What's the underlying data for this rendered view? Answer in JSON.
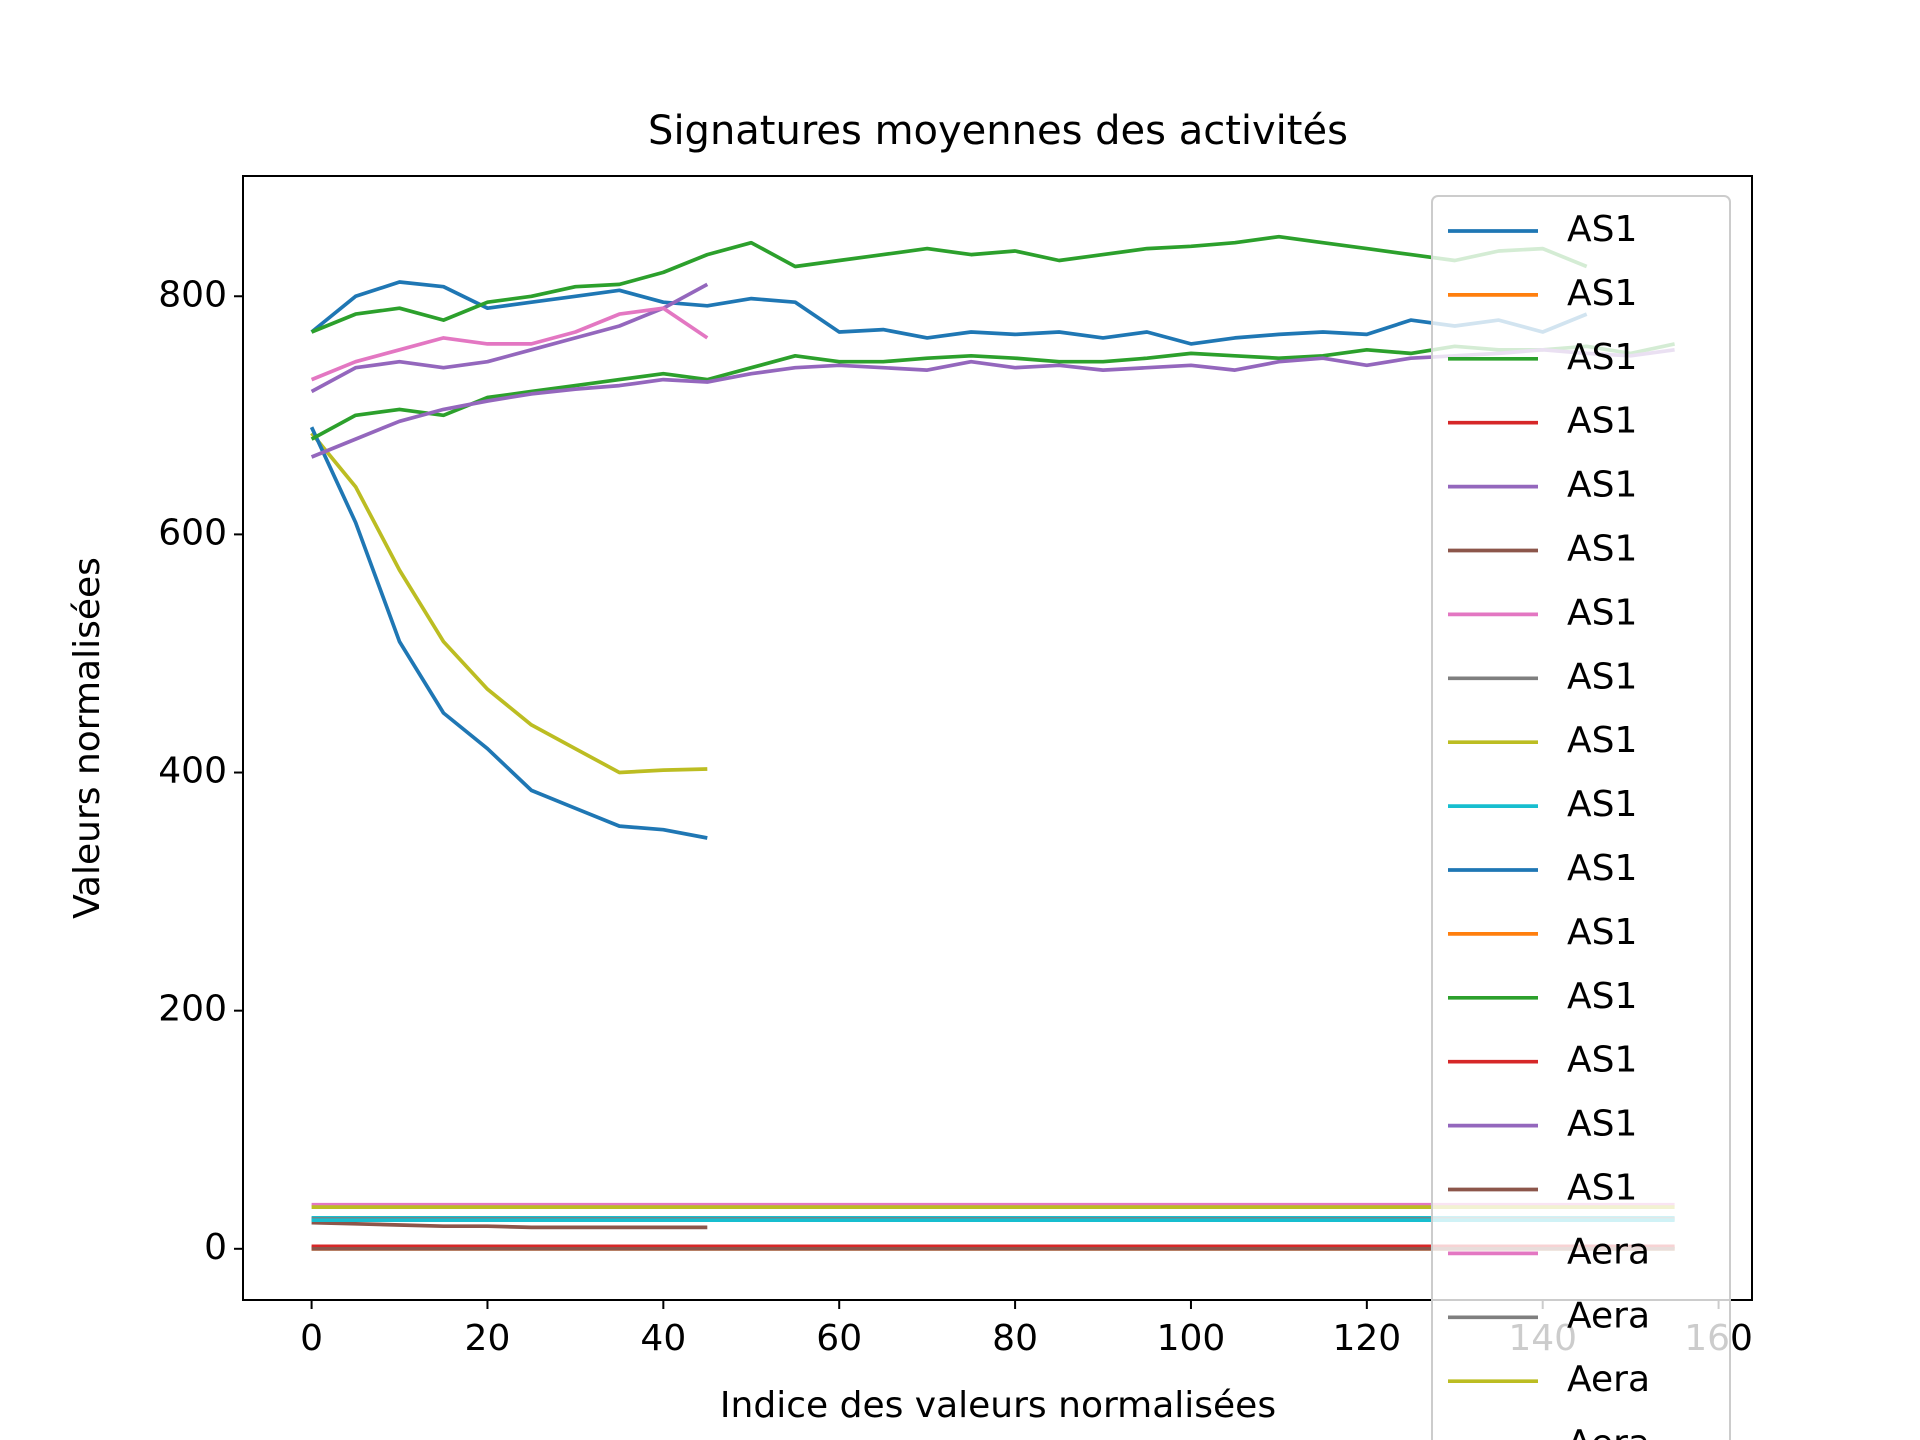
{
  "chart_data": {
    "type": "line",
    "title": "Signatures moyennes des activités",
    "xlabel": "Indice des valeurs normalisées",
    "ylabel": "Valeurs normalisées",
    "x": [
      0,
      5,
      10,
      15,
      20,
      25,
      30,
      35,
      40,
      45,
      50,
      55,
      60,
      65,
      70,
      75,
      80,
      85,
      90,
      95,
      100,
      105,
      110,
      115,
      120,
      125,
      130,
      135,
      140,
      145,
      150,
      155
    ],
    "xlim": [
      -7.8,
      163.8
    ],
    "xticks": [
      0,
      20,
      40,
      60,
      80,
      100,
      120,
      140,
      160
    ],
    "ylim": [
      -43,
      901
    ],
    "yticks": [
      0,
      200,
      400,
      600,
      800
    ],
    "legend_loc": "upper right",
    "series": [
      {
        "name": "AS1",
        "color": "#1f77b4",
        "values": [
          770,
          800,
          812,
          808,
          790,
          795,
          800,
          805,
          795,
          792,
          798,
          795,
          770,
          772,
          765,
          770,
          768,
          770,
          765,
          770,
          760,
          765,
          768,
          770,
          768,
          780,
          775,
          780,
          770,
          785,
          null,
          null
        ]
      },
      {
        "name": "AS1",
        "color": "#ff7f0e",
        "values": [
          0,
          0,
          0,
          0,
          0,
          0,
          0,
          0,
          0,
          0,
          0,
          0,
          0,
          0,
          0,
          0,
          0,
          0,
          0,
          0,
          0,
          0,
          0,
          0,
          0,
          0,
          0,
          0,
          0,
          0,
          0,
          0
        ]
      },
      {
        "name": "AS1",
        "color": "#2ca02c",
        "values": [
          770,
          785,
          790,
          780,
          795,
          800,
          808,
          810,
          820,
          835,
          845,
          825,
          830,
          835,
          840,
          835,
          838,
          830,
          835,
          840,
          842,
          845,
          850,
          845,
          840,
          835,
          830,
          838,
          840,
          825,
          null,
          null
        ]
      },
      {
        "name": "AS1",
        "color": "#d62728",
        "values": [
          1,
          1,
          1,
          1,
          1,
          1,
          1,
          1,
          1,
          1,
          1,
          1,
          1,
          1,
          1,
          1,
          1,
          1,
          1,
          1,
          1,
          1,
          1,
          1,
          1,
          1,
          1,
          1,
          1,
          1,
          1,
          1
        ]
      },
      {
        "name": "AS1",
        "color": "#9467bd",
        "values": [
          720,
          740,
          745,
          740,
          745,
          755,
          765,
          775,
          790,
          810,
          null,
          null,
          null,
          null,
          null,
          null,
          null,
          null,
          null,
          null,
          null,
          null,
          null,
          null,
          null,
          null,
          null,
          null,
          null,
          null,
          null,
          null
        ]
      },
      {
        "name": "AS1",
        "color": "#8c564b",
        "values": [
          22,
          21,
          20,
          19,
          19,
          18,
          18,
          18,
          18,
          18,
          null,
          null,
          null,
          null,
          null,
          null,
          null,
          null,
          null,
          null,
          null,
          null,
          null,
          null,
          null,
          null,
          null,
          null,
          null,
          null,
          null,
          null
        ]
      },
      {
        "name": "AS1",
        "color": "#e377c2",
        "values": [
          730,
          745,
          755,
          765,
          760,
          760,
          770,
          785,
          790,
          765,
          null,
          null,
          null,
          null,
          null,
          null,
          null,
          null,
          null,
          null,
          null,
          null,
          null,
          null,
          null,
          null,
          null,
          null,
          null,
          null,
          null,
          null
        ]
      },
      {
        "name": "AS1",
        "color": "#7f7f7f",
        "values": [
          25,
          25,
          25,
          25,
          25,
          25,
          25,
          25,
          25,
          25,
          25,
          25,
          25,
          25,
          25,
          25,
          25,
          25,
          25,
          25,
          25,
          25,
          25,
          25,
          25,
          25,
          25,
          25,
          25,
          25,
          25,
          25
        ]
      },
      {
        "name": "AS1",
        "color": "#bcbd22",
        "values": [
          685,
          640,
          570,
          510,
          470,
          440,
          420,
          400,
          402,
          403,
          null,
          null,
          null,
          null,
          null,
          null,
          null,
          null,
          null,
          null,
          null,
          null,
          null,
          null,
          null,
          null,
          null,
          null,
          null,
          null,
          null,
          null
        ]
      },
      {
        "name": "AS1",
        "color": "#17becf",
        "values": [
          26,
          26,
          26,
          26,
          26,
          26,
          26,
          26,
          26,
          26,
          26,
          26,
          26,
          26,
          26,
          26,
          26,
          26,
          26,
          26,
          26,
          26,
          26,
          26,
          26,
          26,
          26,
          26,
          26,
          26,
          26,
          26
        ]
      },
      {
        "name": "AS1",
        "color": "#1f77b4",
        "values": [
          690,
          610,
          510,
          450,
          420,
          385,
          370,
          355,
          352,
          345,
          null,
          null,
          null,
          null,
          null,
          null,
          null,
          null,
          null,
          null,
          null,
          null,
          null,
          null,
          null,
          null,
          null,
          null,
          null,
          null,
          null,
          null
        ]
      },
      {
        "name": "AS1",
        "color": "#ff7f0e",
        "values": [
          0,
          0,
          0,
          0,
          0,
          0,
          0,
          0,
          0,
          0,
          0,
          0,
          0,
          0,
          0,
          0,
          0,
          0,
          0,
          0,
          0,
          0,
          0,
          0,
          0,
          0,
          0,
          0,
          0,
          0,
          0,
          0
        ]
      },
      {
        "name": "AS1",
        "color": "#2ca02c",
        "values": [
          680,
          700,
          705,
          700,
          715,
          720,
          725,
          730,
          735,
          730,
          740,
          750,
          745,
          745,
          748,
          750,
          748,
          745,
          745,
          748,
          752,
          750,
          748,
          750,
          755,
          752,
          758,
          755,
          755,
          758,
          752,
          760
        ]
      },
      {
        "name": "AS1",
        "color": "#d62728",
        "values": [
          2,
          2,
          2,
          2,
          2,
          2,
          2,
          2,
          2,
          2,
          2,
          2,
          2,
          2,
          2,
          2,
          2,
          2,
          2,
          2,
          2,
          2,
          2,
          2,
          2,
          2,
          2,
          2,
          2,
          2,
          2,
          2
        ]
      },
      {
        "name": "AS1",
        "color": "#9467bd",
        "values": [
          665,
          680,
          695,
          705,
          712,
          718,
          722,
          725,
          730,
          728,
          735,
          740,
          742,
          740,
          738,
          745,
          740,
          742,
          738,
          740,
          742,
          738,
          745,
          748,
          742,
          748,
          750,
          752,
          755,
          752,
          750,
          755
        ]
      },
      {
        "name": "AS1",
        "color": "#8c564b",
        "values": [
          0,
          0,
          0,
          0,
          0,
          0,
          0,
          0,
          0,
          0,
          0,
          0,
          0,
          0,
          0,
          0,
          0,
          0,
          0,
          0,
          0,
          0,
          0,
          0,
          0,
          0,
          0,
          0,
          0,
          0,
          0,
          0
        ]
      },
      {
        "name": "Aera",
        "color": "#e377c2",
        "values": [
          37,
          37,
          37,
          37,
          37,
          37,
          37,
          37,
          37,
          37,
          37,
          37,
          37,
          37,
          37,
          37,
          37,
          37,
          37,
          37,
          37,
          37,
          37,
          37,
          37,
          37,
          37,
          37,
          37,
          37,
          37,
          37
        ]
      },
      {
        "name": "Aera",
        "color": "#7f7f7f",
        "values": [
          25,
          25,
          25,
          25,
          25,
          25,
          25,
          25,
          25,
          25,
          25,
          25,
          25,
          25,
          25,
          25,
          25,
          25,
          25,
          25,
          25,
          25,
          25,
          25,
          25,
          25,
          25,
          25,
          25,
          25,
          25,
          25
        ]
      },
      {
        "name": "Aera",
        "color": "#bcbd22",
        "values": [
          35,
          35,
          35,
          35,
          35,
          35,
          35,
          35,
          35,
          35,
          35,
          35,
          35,
          35,
          35,
          35,
          35,
          35,
          35,
          35,
          35,
          35,
          35,
          35,
          35,
          35,
          35,
          35,
          35,
          35,
          35,
          35
        ]
      },
      {
        "name": "Aera",
        "color": "#17becf",
        "values": [
          24,
          24,
          24,
          24,
          24,
          24,
          24,
          24,
          24,
          24,
          24,
          24,
          24,
          24,
          24,
          24,
          24,
          24,
          24,
          24,
          24,
          24,
          24,
          24,
          24,
          24,
          24,
          24,
          24,
          24,
          24,
          24
        ]
      }
    ]
  }
}
